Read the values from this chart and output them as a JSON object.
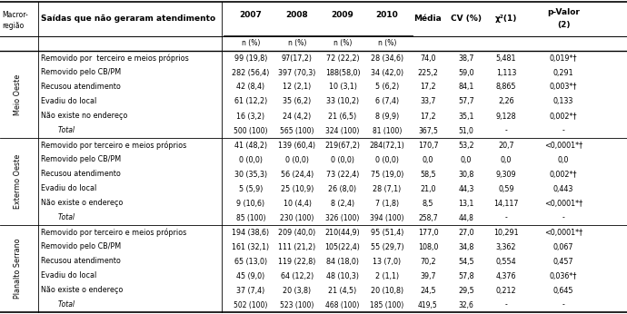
{
  "regions": [
    "Meio Oeste",
    "Extermo Oeste",
    "Planalto Serrano"
  ],
  "region_rows": {
    "Meio Oeste": [
      [
        "Removido por  terceiro e meios próprios",
        "99 (19,8)",
        "97(17,2)",
        "72 (22,2)",
        "28 (34,6)",
        "74,0",
        "38,7",
        "5,481",
        "0,019*†"
      ],
      [
        "Removido pelo CB/PM",
        "282 (56,4)",
        "397 (70,3)",
        "188(58,0)",
        "34 (42,0)",
        "225,2",
        "59,0",
        "1,113",
        "0,291"
      ],
      [
        "Recusou atendimento",
        "42 (8,4)",
        "12 (2,1)",
        "10 (3,1)",
        "5 (6,2)",
        "17,2",
        "84,1",
        "8,865",
        "0,003*†"
      ],
      [
        "Evadiu do local",
        "61 (12,2)",
        "35 (6,2)",
        "33 (10,2)",
        "6 (7,4)",
        "33,7",
        "57,7",
        "2,26",
        "0,133"
      ],
      [
        "Não existe no endereço",
        "16 (3,2)",
        "24 (4,2)",
        "21 (6,5)",
        "8 (9,9)",
        "17,2",
        "35,1",
        "9,128",
        "0,002*†"
      ],
      [
        "Total",
        "500 (100)",
        "565 (100)",
        "324 (100)",
        "81 (100)",
        "367,5",
        "51,0",
        "-",
        "-"
      ]
    ],
    "Extermo Oeste": [
      [
        "Removido por terceiro e meios próprios",
        "41 (48,2)",
        "139 (60,4)",
        "219(67,2)",
        "284(72,1)",
        "170,7",
        "53,2",
        "20,7",
        "<0,0001*†"
      ],
      [
        "Removido pelo CB/PM",
        "0 (0,0)",
        "0 (0,0)",
        "0 (0,0)",
        "0 (0,0)",
        "0,0",
        "0,0",
        "0,0",
        "0,0"
      ],
      [
        "Recusou atendimento",
        "30 (35,3)",
        "56 (24,4)",
        "73 (22,4)",
        "75 (19,0)",
        "58,5",
        "30,8",
        "9,309",
        "0,002*†"
      ],
      [
        "Evadiu do local",
        "5 (5,9)",
        "25 (10,9)",
        "26 (8,0)",
        "28 (7,1)",
        "21,0",
        "44,3",
        "0,59",
        "0,443"
      ],
      [
        "Não existe o endereço",
        "9 (10,6)",
        "10 (4,4)",
        "8 (2,4)",
        "7 (1,8)",
        "8,5",
        "13,1",
        "14,117",
        "<0,0001*†"
      ],
      [
        "Total",
        "85 (100)",
        "230 (100)",
        "326 (100)",
        "394 (100)",
        "258,7",
        "44,8",
        "-",
        "-"
      ]
    ],
    "Planalto Serrano": [
      [
        "Removido por terceiro e meios próprios",
        "194 (38,6)",
        "209 (40,0)",
        "210(44,9)",
        "95 (51,4)",
        "177,0",
        "27,0",
        "10,291",
        "<0,0001*†"
      ],
      [
        "Removido pelo CB/PM",
        "161 (32,1)",
        "111 (21,2)",
        "105(22,4)",
        "55 (29,7)",
        "108,0",
        "34,8",
        "3,362",
        "0,067"
      ],
      [
        "Recusou atendimento",
        "65 (13,0)",
        "119 (22,8)",
        "84 (18,0)",
        "13 (7,0)",
        "70,2",
        "54,5",
        "0,554",
        "0,457"
      ],
      [
        "Evadiu do local",
        "45 (9,0)",
        "64 (12,2)",
        "48 (10,3)",
        "2 (1,1)",
        "39,7",
        "57,8",
        "4,376",
        "0,036*†"
      ],
      [
        "Não existe o endereço",
        "37 (7,4)",
        "20 (3,8)",
        "21 (4,5)",
        "20 (10,8)",
        "24,5",
        "29,5",
        "0,212",
        "0,645"
      ],
      [
        "Total",
        "502 (100)",
        "523 (100)",
        "468 (100)",
        "185 (100)",
        "419,5",
        "32,6",
        "-",
        "-"
      ]
    ]
  },
  "fontsize": 5.8,
  "header_fontsize": 6.5,
  "small_fontsize": 5.5
}
